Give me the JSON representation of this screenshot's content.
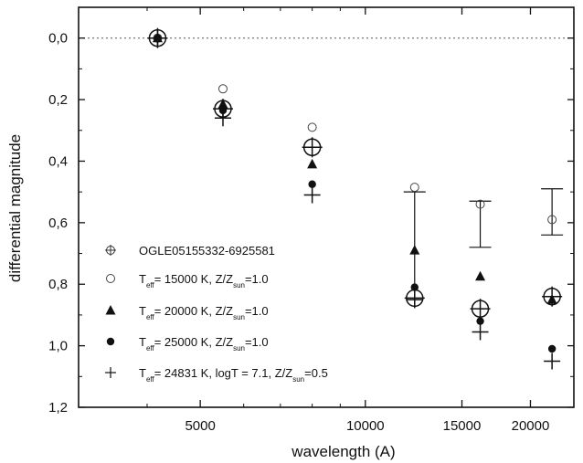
{
  "chart_data": {
    "type": "scatter",
    "xlabel": "wavelength (A)",
    "ylabel": "differential magnitude",
    "x_scale": "log",
    "xlim": [
      3000,
      24000
    ],
    "ylim": [
      1.2,
      -0.1
    ],
    "x_ticks": [
      5000,
      10000,
      15000,
      20000
    ],
    "x_tick_labels": [
      "5000",
      "10000",
      "15000",
      "20000"
    ],
    "y_ticks": [
      0.0,
      0.2,
      0.4,
      0.6,
      0.8,
      1.0,
      1.2
    ],
    "y_tick_labels": [
      "0,0",
      "0,2",
      "0,4",
      "0,6",
      "0,8",
      "1,0",
      "1,2"
    ],
    "reference_line": {
      "y": 0.0,
      "style": "dotted"
    },
    "grid": false,
    "legend_position": "bottom-left",
    "series": [
      {
        "legend": [
          {
            "text": "OGLE05155332-6925581"
          }
        ],
        "marker": "circle-plus",
        "points": [
          {
            "x": 4180,
            "y": 0.0
          },
          {
            "x": 5500,
            "y": 0.23
          },
          {
            "x": 8000,
            "y": 0.355
          },
          {
            "x": 12300,
            "y": 0.845,
            "yerr_low": 0.5,
            "yerr_high": null
          },
          {
            "x": 16200,
            "y": 0.88,
            "yerr_low": 0.53,
            "yerr_high": 0.68
          },
          {
            "x": 21900,
            "y": 0.84,
            "yerr_low": 0.49,
            "yerr_high": 0.64
          }
        ]
      },
      {
        "legend": [
          {
            "text": "T"
          },
          {
            "sub": "eff"
          },
          {
            "text": "= 15000 K,  Z/Z"
          },
          {
            "sub": "sun"
          },
          {
            "text": "=1.0"
          }
        ],
        "marker": "open-circle",
        "points": [
          {
            "x": 4180,
            "y": 0.0
          },
          {
            "x": 5500,
            "y": 0.165
          },
          {
            "x": 8000,
            "y": 0.29
          },
          {
            "x": 12300,
            "y": 0.485
          },
          {
            "x": 16200,
            "y": 0.54
          },
          {
            "x": 21900,
            "y": 0.59
          }
        ]
      },
      {
        "legend": [
          {
            "text": "T"
          },
          {
            "sub": "eff"
          },
          {
            "text": "= 20000 K,  Z/Z"
          },
          {
            "sub": "sun"
          },
          {
            "text": "=1.0"
          }
        ],
        "marker": "filled-triangle",
        "points": [
          {
            "x": 4180,
            "y": 0.0
          },
          {
            "x": 5500,
            "y": 0.215
          },
          {
            "x": 8000,
            "y": 0.41
          },
          {
            "x": 12300,
            "y": 0.69
          },
          {
            "x": 16200,
            "y": 0.775
          },
          {
            "x": 21900,
            "y": 0.85
          }
        ]
      },
      {
        "legend": [
          {
            "text": "T"
          },
          {
            "sub": "eff"
          },
          {
            "text": "= 25000 K,  Z/Z"
          },
          {
            "sub": "sun"
          },
          {
            "text": "=1.0"
          }
        ],
        "marker": "filled-circle",
        "points": [
          {
            "x": 4180,
            "y": 0.0
          },
          {
            "x": 5500,
            "y": 0.235
          },
          {
            "x": 8000,
            "y": 0.475
          },
          {
            "x": 12300,
            "y": 0.81
          },
          {
            "x": 16200,
            "y": 0.92
          },
          {
            "x": 21900,
            "y": 1.01
          }
        ]
      },
      {
        "legend": [
          {
            "text": "T"
          },
          {
            "sub": "eff"
          },
          {
            "text": "= 24831 K, logT = 7.1, Z/Z"
          },
          {
            "sub": "sun"
          },
          {
            "text": "=0.5"
          }
        ],
        "marker": "plus",
        "points": [
          {
            "x": 4180,
            "y": 0.0
          },
          {
            "x": 5500,
            "y": 0.26
          },
          {
            "x": 8000,
            "y": 0.51
          },
          {
            "x": 12300,
            "y": 0.85
          },
          {
            "x": 16200,
            "y": 0.955
          },
          {
            "x": 21900,
            "y": 1.05
          }
        ]
      }
    ]
  }
}
